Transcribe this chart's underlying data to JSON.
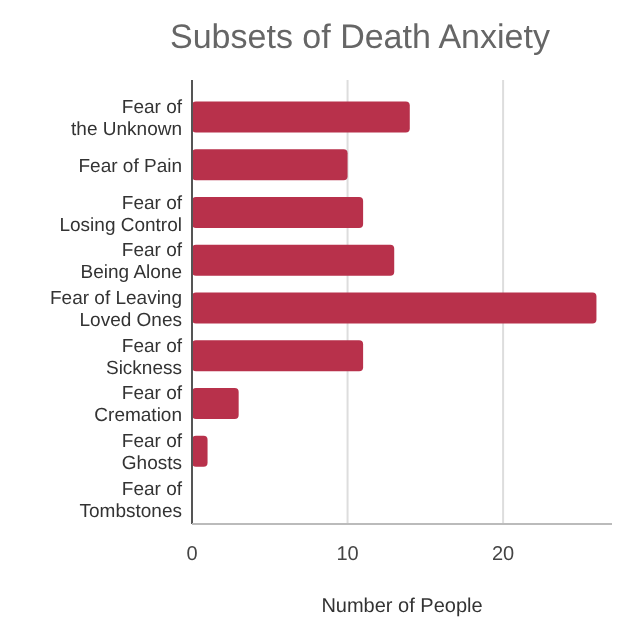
{
  "chart_data": {
    "type": "bar",
    "orientation": "horizontal",
    "title": "Subsets of Death Anxiety",
    "xlabel": "Number of People",
    "categories": [
      "Fear of the Unknown",
      "Fear of Pain",
      "Fear of Losing Control",
      "Fear of Being Alone",
      "Fear of Leaving Loved Ones",
      "Fear of Sickness",
      "Fear of Cremation",
      "Fear of Ghosts",
      "Fear of Tombstones"
    ],
    "values": [
      14,
      10,
      11,
      13,
      26,
      11,
      3,
      1,
      0
    ],
    "color": "#b8314b",
    "xlim": [
      0,
      27
    ],
    "xticks": [
      0,
      10,
      20
    ],
    "grid": "x"
  }
}
